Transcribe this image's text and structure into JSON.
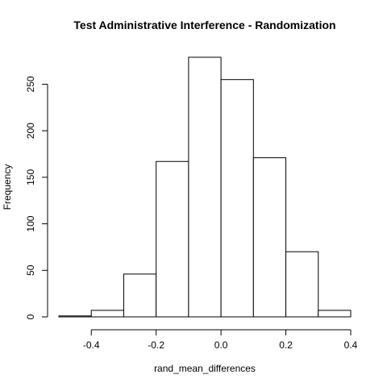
{
  "chart_data": {
    "type": "bar",
    "title": "Test Administrative Interference - Randomization",
    "xlabel": "rand_mean_differences",
    "ylabel": "Frequency",
    "bins": [
      {
        "from": -0.5,
        "to": -0.4,
        "count": 1
      },
      {
        "from": -0.4,
        "to": -0.3,
        "count": 7
      },
      {
        "from": -0.3,
        "to": -0.2,
        "count": 46
      },
      {
        "from": -0.2,
        "to": -0.1,
        "count": 167
      },
      {
        "from": -0.1,
        "to": 0.0,
        "count": 279
      },
      {
        "from": 0.0,
        "to": 0.1,
        "count": 255
      },
      {
        "from": 0.1,
        "to": 0.2,
        "count": 171
      },
      {
        "from": 0.2,
        "to": 0.3,
        "count": 70
      },
      {
        "from": 0.3,
        "to": 0.4,
        "count": 7
      }
    ],
    "xlim": [
      -0.5,
      0.4
    ],
    "ylim": [
      0,
      279
    ],
    "x_ticks": [
      -0.4,
      -0.2,
      0.0,
      0.2,
      0.4
    ],
    "x_tick_labels": [
      "-0.4",
      "-0.2",
      "0.0",
      "0.2",
      "0.4"
    ],
    "y_ticks": [
      0,
      50,
      100,
      150,
      200,
      250
    ],
    "y_tick_labels": [
      "0",
      "50",
      "100",
      "150",
      "200",
      "250"
    ],
    "grid": false,
    "legend": "none"
  }
}
